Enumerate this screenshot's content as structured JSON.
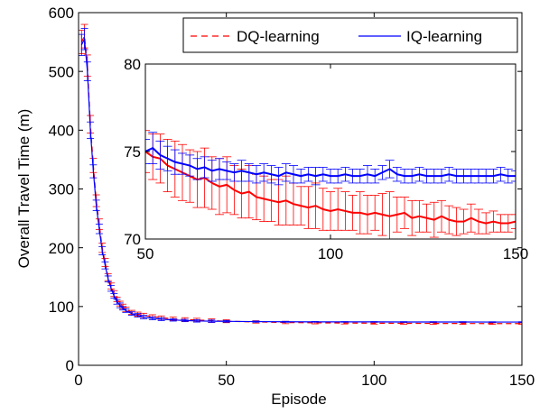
{
  "chart_data": [
    {
      "type": "line",
      "xlabel": "Episode",
      "ylabel": "Overall Travel Time (m)",
      "xlim": [
        0,
        150
      ],
      "ylim": [
        0,
        600
      ],
      "xticks": [
        0,
        50,
        100,
        150
      ],
      "yticks": [
        0,
        100,
        200,
        300,
        400,
        500,
        600
      ],
      "grid": false,
      "error_bars": true,
      "legend_position": "top-right",
      "series": [
        {
          "name": "DQ-learning",
          "color": "#ff0000",
          "line_style": "dashed",
          "x": [
            1,
            2,
            3,
            4,
            5,
            6,
            7,
            8,
            9,
            10,
            11,
            12,
            13,
            14,
            15,
            16,
            18,
            20,
            22,
            25,
            28,
            32,
            36,
            40,
            45,
            50,
            60,
            70,
            80,
            90,
            100,
            110,
            120,
            130,
            140,
            150
          ],
          "values": [
            550,
            560,
            510,
            410,
            340,
            280,
            240,
            200,
            175,
            150,
            135,
            122,
            112,
            105,
            100,
            95,
            90,
            87,
            85,
            83,
            81,
            79,
            78,
            77,
            76,
            75,
            73.8,
            72.8,
            72.3,
            71.9,
            71.6,
            71.4,
            71.2,
            71.1,
            71.0,
            71.0
          ],
          "errors": [
            20,
            20,
            18,
            15,
            12,
            10,
            9,
            8,
            7,
            6,
            5,
            5,
            4,
            4,
            4,
            4,
            3.5,
            3.5,
            3.5,
            3,
            3,
            3,
            3,
            3,
            3,
            2.5,
            2,
            2,
            1.8,
            1.6,
            1.5,
            1.5,
            1.5,
            1.4,
            1.3,
            1.3
          ]
        },
        {
          "name": "IQ-learning",
          "color": "#0000ff",
          "line_style": "solid",
          "x": [
            1,
            2,
            3,
            4,
            5,
            6,
            7,
            8,
            9,
            10,
            11,
            12,
            13,
            14,
            15,
            16,
            18,
            20,
            22,
            25,
            28,
            32,
            36,
            40,
            45,
            50,
            60,
            70,
            80,
            90,
            100,
            110,
            120,
            130,
            140,
            150
          ],
          "values": [
            545,
            555,
            500,
            400,
            330,
            272,
            232,
            195,
            170,
            147,
            131,
            118,
            108,
            102,
            97,
            93,
            88,
            85,
            82,
            80,
            78.5,
            77.2,
            76.2,
            75.5,
            75.0,
            74.8,
            74.3,
            74.0,
            73.9,
            73.8,
            73.8,
            73.7,
            73.7,
            73.7,
            73.6,
            73.6
          ],
          "errors": [
            18,
            18,
            16,
            14,
            11,
            9,
            8,
            7,
            6,
            5,
            5,
            4,
            4,
            4,
            3,
            3,
            3,
            3,
            3,
            2.5,
            2.5,
            2,
            2,
            2,
            2,
            1.5,
            1,
            0.8,
            0.6,
            0.5,
            0.5,
            0.5,
            0.5,
            0.5,
            0.5,
            0.5
          ]
        }
      ]
    },
    {
      "type": "line",
      "inset": true,
      "xlim": [
        50,
        150
      ],
      "ylim": [
        70,
        80
      ],
      "xticks": [
        50,
        100,
        150
      ],
      "yticks": [
        70,
        75,
        80
      ],
      "grid": false,
      "error_bars": true,
      "series": [
        {
          "color": "#ff0000",
          "line_style": "solid",
          "x": [
            50,
            52,
            54,
            56,
            58,
            60,
            62,
            64,
            66,
            68,
            70,
            72,
            74,
            76,
            78,
            80,
            82,
            84,
            86,
            88,
            90,
            92,
            94,
            96,
            98,
            100,
            102,
            104,
            106,
            108,
            110,
            112,
            114,
            116,
            118,
            120,
            122,
            124,
            126,
            128,
            130,
            132,
            134,
            136,
            138,
            140,
            142,
            144,
            146,
            148,
            150
          ],
          "values": [
            75.0,
            74.7,
            74.6,
            74.2,
            74.0,
            73.8,
            73.6,
            73.4,
            73.5,
            73.2,
            73.0,
            73.1,
            72.8,
            72.6,
            72.7,
            72.4,
            72.3,
            72.2,
            72.1,
            72.2,
            72.0,
            71.9,
            71.8,
            71.9,
            71.7,
            71.6,
            71.7,
            71.6,
            71.5,
            71.5,
            71.4,
            71.5,
            71.4,
            71.3,
            71.4,
            71.5,
            71.2,
            71.3,
            71.2,
            71.1,
            71.3,
            71.1,
            71.0,
            71.0,
            71.2,
            71.0,
            70.9,
            71.0,
            70.9,
            70.9,
            71.0
          ],
          "errors": [
            1.2,
            1.3,
            1.4,
            1.5,
            1.6,
            1.6,
            1.5,
            1.6,
            1.7,
            1.5,
            1.6,
            1.6,
            1.4,
            1.4,
            1.5,
            1.3,
            1.3,
            1.2,
            1.3,
            1.4,
            1.2,
            1.1,
            1.2,
            1.3,
            1.2,
            1.1,
            1.2,
            1.1,
            1.0,
            1.2,
            1.1,
            1.0,
            1.2,
            1.4,
            1.0,
            0.9,
            1.0,
            0.9,
            0.8,
            1.0,
            0.9,
            0.8,
            0.8,
            0.7,
            0.8,
            0.7,
            0.6,
            0.6,
            0.5,
            0.5,
            0.4
          ]
        },
        {
          "color": "#0000ff",
          "line_style": "solid",
          "x": [
            50,
            52,
            54,
            56,
            58,
            60,
            62,
            64,
            66,
            68,
            70,
            72,
            74,
            76,
            78,
            80,
            82,
            84,
            86,
            88,
            90,
            92,
            94,
            96,
            98,
            100,
            102,
            104,
            106,
            108,
            110,
            112,
            114,
            116,
            118,
            120,
            122,
            124,
            126,
            128,
            130,
            132,
            134,
            136,
            138,
            140,
            142,
            144,
            146,
            148,
            150
          ],
          "values": [
            75.0,
            75.2,
            74.8,
            74.6,
            74.4,
            74.3,
            74.2,
            74.0,
            74.1,
            73.9,
            74.0,
            73.9,
            73.8,
            73.9,
            73.8,
            73.7,
            73.8,
            73.7,
            73.6,
            73.8,
            73.7,
            73.6,
            73.7,
            73.6,
            73.7,
            73.6,
            73.6,
            73.7,
            73.6,
            73.6,
            73.7,
            73.6,
            73.8,
            74.0,
            73.7,
            73.6,
            73.6,
            73.7,
            73.6,
            73.6,
            73.6,
            73.7,
            73.6,
            73.6,
            73.6,
            73.6,
            73.6,
            73.6,
            73.7,
            73.6,
            73.6
          ],
          "errors": [
            0.7,
            0.9,
            0.8,
            0.7,
            0.7,
            0.6,
            0.6,
            0.6,
            0.6,
            0.6,
            0.6,
            0.5,
            0.5,
            0.6,
            0.5,
            0.5,
            0.5,
            0.5,
            0.5,
            0.5,
            0.5,
            0.4,
            0.4,
            0.5,
            0.4,
            0.4,
            0.4,
            0.4,
            0.4,
            0.4,
            0.5,
            0.4,
            0.4,
            0.5,
            0.4,
            0.4,
            0.4,
            0.4,
            0.4,
            0.4,
            0.4,
            0.4,
            0.4,
            0.4,
            0.4,
            0.4,
            0.4,
            0.4,
            0.4,
            0.4,
            0.3
          ]
        }
      ]
    }
  ]
}
